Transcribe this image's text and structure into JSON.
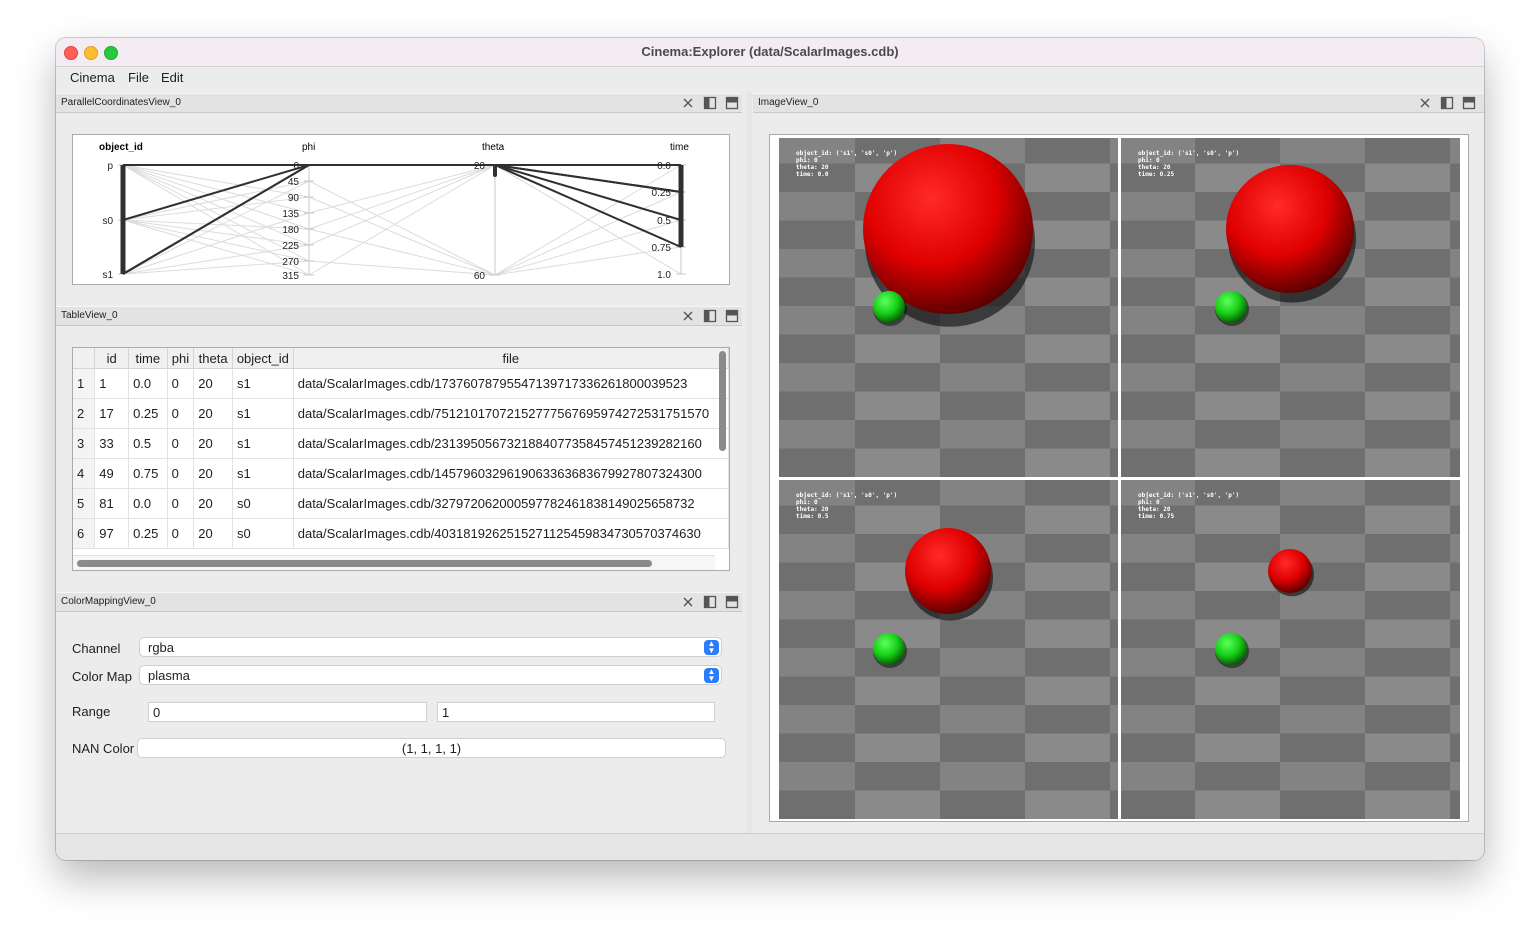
{
  "window": {
    "title": "Cinema:Explorer (data/ScalarImages.cdb)"
  },
  "menu": {
    "items": [
      "Cinema",
      "File",
      "Edit"
    ]
  },
  "parallel_view": {
    "title": "ParallelCoordinatesView_0",
    "axes": [
      {
        "name": "object_id",
        "ticks": [
          "p",
          "s0",
          "s1"
        ]
      },
      {
        "name": "phi",
        "ticks": [
          "0",
          "45",
          "90",
          "135",
          "180",
          "225",
          "270",
          "315"
        ]
      },
      {
        "name": "theta",
        "ticks": [
          "20",
          "60"
        ]
      },
      {
        "name": "time",
        "ticks": [
          "0.0",
          "0.25",
          "0.5",
          "0.75",
          "1.0"
        ]
      }
    ]
  },
  "table_view": {
    "title": "TableView_0",
    "columns": [
      "id",
      "time",
      "phi",
      "theta",
      "object_id",
      "file"
    ],
    "rows": [
      [
        "1",
        "1",
        "0.0",
        "0",
        "20",
        "s1",
        "data/ScalarImages.cdb/17376078795547139717336261800039523"
      ],
      [
        "2",
        "17",
        "0.25",
        "0",
        "20",
        "s1",
        "data/ScalarImages.cdb/75121017072152777567695974272531751570"
      ],
      [
        "3",
        "33",
        "0.5",
        "0",
        "20",
        "s1",
        "data/ScalarImages.cdb/2313950567321884077358457451239282160"
      ],
      [
        "4",
        "49",
        "0.75",
        "0",
        "20",
        "s1",
        "data/ScalarImages.cdb/1457960329619063363683679927807324300"
      ],
      [
        "5",
        "81",
        "0.0",
        "0",
        "20",
        "s0",
        "data/ScalarImages.cdb/327972062000597782461838149025658732"
      ],
      [
        "6",
        "97",
        "0.25",
        "0",
        "20",
        "s0",
        "data/ScalarImages.cdb/4031819262515271125459834730570374630"
      ]
    ]
  },
  "colormap_view": {
    "title": "ColorMappingView_0",
    "channel_label": "Channel",
    "channel_value": "rgba",
    "colormap_label": "Color Map",
    "colormap_value": "plasma",
    "range_label": "Range",
    "range_min": "0",
    "range_max": "1",
    "nan_label": "NAN Color",
    "nan_value": "(1, 1, 1, 1)"
  },
  "image_view": {
    "title": "ImageView_0",
    "tiles": [
      {
        "overlay": [
          "object_id: ('s1', 's0', 'p')",
          "phi: 0",
          "theta: 20",
          "time: 0.0"
        ],
        "time": 0.0
      },
      {
        "overlay": [
          "object_id: ('s1', 's0', 'p')",
          "phi: 0",
          "theta: 20",
          "time: 0.25"
        ],
        "time": 0.25
      },
      {
        "overlay": [
          "object_id: ('s1', 's0', 'p')",
          "phi: 0",
          "theta: 20",
          "time: 0.5"
        ],
        "time": 0.5
      },
      {
        "overlay": [
          "object_id: ('s1', 's0', 'p')",
          "phi: 0",
          "theta: 20",
          "time: 0.75"
        ],
        "time": 0.75
      }
    ]
  },
  "colors": {
    "sphere_red": "#e00000",
    "sphere_green": "#18d018",
    "checker_light": "#8a8a8a",
    "checker_dark": "#6e6e6e",
    "accent": "#2b7cf6"
  }
}
